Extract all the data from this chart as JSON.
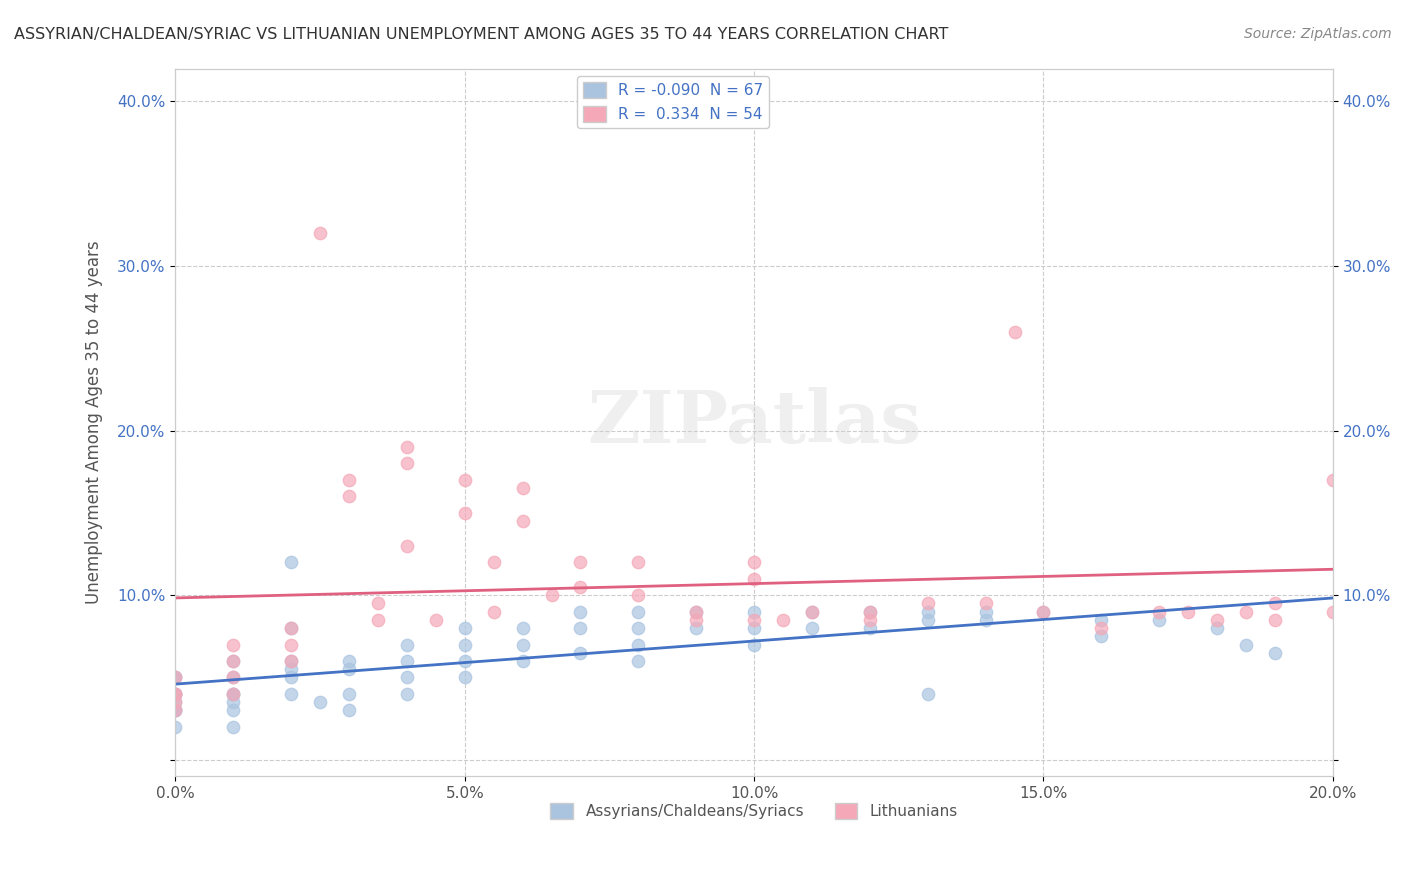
{
  "title": "ASSYRIAN/CHALDEAN/SYRIAC VS LITHUANIAN UNEMPLOYMENT AMONG AGES 35 TO 44 YEARS CORRELATION CHART",
  "source": "Source: ZipAtlas.com",
  "ylabel": "Unemployment Among Ages 35 to 44 years",
  "xlim": [
    0.0,
    0.2
  ],
  "ylim": [
    -0.01,
    0.42
  ],
  "xticks": [
    0.0,
    0.05,
    0.1,
    0.15,
    0.2
  ],
  "xticklabels": [
    "0.0%",
    "5.0%",
    "10.0%",
    "15.0%",
    "20.0%"
  ],
  "yticks": [
    0.0,
    0.1,
    0.2,
    0.3,
    0.4
  ],
  "yticklabels": [
    "",
    "10.0%",
    "20.0%",
    "30.0%",
    "40.0%"
  ],
  "right_ytick_labels": [
    "",
    "10.0%",
    "20.0%",
    "30.0%",
    "40.0%"
  ],
  "grid_color": "#cccccc",
  "background_color": "#ffffff",
  "blue_color": "#aac4e0",
  "pink_color": "#f4a8b8",
  "blue_line_color": "#4472c4",
  "pink_line_color": "#e06080",
  "legend_R1": "-0.090",
  "legend_N1": "67",
  "legend_R2": "0.334",
  "legend_N2": "54",
  "watermark": "ZIPatlas",
  "blue_scatter_x": [
    0.0,
    0.0,
    0.0,
    0.0,
    0.0,
    0.0,
    0.0,
    0.0,
    0.0,
    0.0,
    0.01,
    0.01,
    0.01,
    0.01,
    0.01,
    0.01,
    0.01,
    0.02,
    0.02,
    0.02,
    0.02,
    0.02,
    0.03,
    0.03,
    0.03,
    0.03,
    0.04,
    0.04,
    0.04,
    0.04,
    0.05,
    0.05,
    0.05,
    0.05,
    0.06,
    0.06,
    0.06,
    0.07,
    0.07,
    0.07,
    0.08,
    0.08,
    0.08,
    0.08,
    0.09,
    0.09,
    0.1,
    0.1,
    0.1,
    0.11,
    0.11,
    0.12,
    0.12,
    0.13,
    0.13,
    0.14,
    0.14,
    0.15,
    0.16,
    0.16,
    0.17,
    0.18,
    0.185,
    0.19,
    0.02,
    0.025,
    0.13
  ],
  "blue_scatter_y": [
    0.03,
    0.04,
    0.05,
    0.03,
    0.04,
    0.05,
    0.02,
    0.04,
    0.035,
    0.03,
    0.035,
    0.04,
    0.05,
    0.06,
    0.04,
    0.03,
    0.02,
    0.05,
    0.06,
    0.04,
    0.12,
    0.055,
    0.04,
    0.055,
    0.06,
    0.03,
    0.06,
    0.07,
    0.05,
    0.04,
    0.07,
    0.08,
    0.06,
    0.05,
    0.08,
    0.07,
    0.06,
    0.09,
    0.08,
    0.065,
    0.08,
    0.09,
    0.07,
    0.06,
    0.09,
    0.08,
    0.09,
    0.08,
    0.07,
    0.09,
    0.08,
    0.09,
    0.08,
    0.09,
    0.085,
    0.09,
    0.085,
    0.09,
    0.085,
    0.075,
    0.085,
    0.08,
    0.07,
    0.065,
    0.08,
    0.035,
    0.04
  ],
  "pink_scatter_x": [
    0.0,
    0.0,
    0.0,
    0.0,
    0.0,
    0.01,
    0.01,
    0.01,
    0.01,
    0.02,
    0.02,
    0.02,
    0.03,
    0.03,
    0.035,
    0.04,
    0.04,
    0.04,
    0.05,
    0.05,
    0.055,
    0.06,
    0.06,
    0.065,
    0.07,
    0.07,
    0.08,
    0.08,
    0.09,
    0.09,
    0.1,
    0.1,
    0.1,
    0.105,
    0.11,
    0.12,
    0.12,
    0.13,
    0.14,
    0.145,
    0.15,
    0.16,
    0.17,
    0.175,
    0.18,
    0.185,
    0.19,
    0.19,
    0.2,
    0.2,
    0.025,
    0.035,
    0.045,
    0.055
  ],
  "pink_scatter_y": [
    0.04,
    0.05,
    0.035,
    0.04,
    0.03,
    0.05,
    0.07,
    0.06,
    0.04,
    0.07,
    0.08,
    0.06,
    0.16,
    0.17,
    0.085,
    0.18,
    0.19,
    0.13,
    0.15,
    0.17,
    0.12,
    0.145,
    0.165,
    0.1,
    0.12,
    0.105,
    0.1,
    0.12,
    0.085,
    0.09,
    0.085,
    0.12,
    0.11,
    0.085,
    0.09,
    0.085,
    0.09,
    0.095,
    0.095,
    0.26,
    0.09,
    0.08,
    0.09,
    0.09,
    0.085,
    0.09,
    0.085,
    0.095,
    0.09,
    0.17,
    0.32,
    0.095,
    0.085,
    0.09
  ]
}
